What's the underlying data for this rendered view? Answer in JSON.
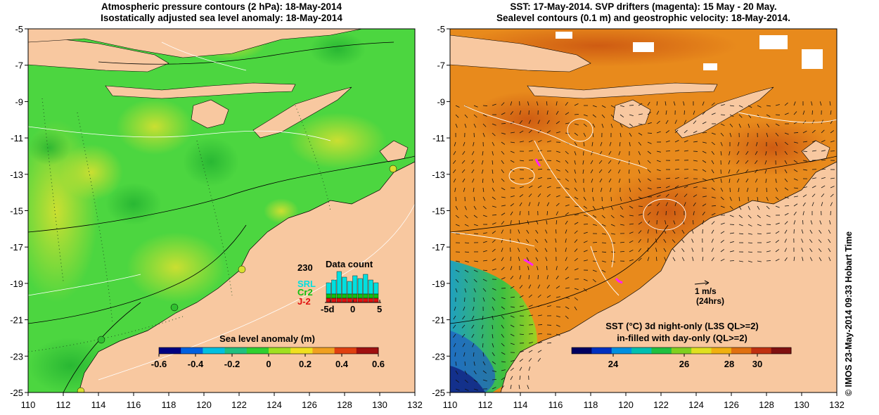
{
  "left_panel": {
    "title_line1": "Atmospheric pressure contours (2 hPa): 18-May-2014",
    "title_line2": "Isostatically adjusted sea level anomaly: 18-May-2014",
    "colorbar": {
      "label": "Sea level anomaly (m)",
      "ticks": [
        "-0.6",
        "-0.4",
        "-0.2",
        "0",
        "0.2",
        "0.4",
        "0.6"
      ],
      "colors": [
        "#000080",
        "#0060e0",
        "#00c0e0",
        "#20c080",
        "#30d030",
        "#a0e020",
        "#f0e020",
        "#f0a020",
        "#e04010",
        "#a01010"
      ]
    },
    "data_count": {
      "title": "Data count",
      "ymax_label": "230",
      "legend": [
        {
          "name": "SRL",
          "color": "#00e0e0"
        },
        {
          "name": "Cr2",
          "color": "#10c010"
        },
        {
          "name": "J-2",
          "color": "#e01010"
        }
      ],
      "x_ticks": [
        "-5d",
        "0",
        "5"
      ]
    }
  },
  "right_panel": {
    "title_line1": "SST: 17-May-2014. SVP drifters (magenta): 15 May - 20 May.",
    "title_line2": "Sealevel contours (0.1 m) and geostrophic velocity: 18-May-2014.",
    "scale_arrow_label1": "1 m/s",
    "scale_arrow_label2": "(24hrs)",
    "colorbar": {
      "label1": "SST (°C)  3d night-only (L3S QL>=2)",
      "label2": "in-filled with day-only (QL>=2)",
      "ticks": [
        "24",
        "26",
        "28",
        "30"
      ],
      "colors": [
        "#000060",
        "#0030c0",
        "#0090e0",
        "#00c0b0",
        "#20c040",
        "#80d020",
        "#e0e020",
        "#f0b010",
        "#e07010",
        "#c03010",
        "#801010"
      ]
    }
  },
  "axes": {
    "x_ticks": [
      "110",
      "112",
      "114",
      "116",
      "118",
      "120",
      "122",
      "124",
      "126",
      "128",
      "130",
      "132"
    ],
    "y_ticks": [
      "-5",
      "-7",
      "-9",
      "-11",
      "-13",
      "-15",
      "-17",
      "-19",
      "-21",
      "-23",
      "-25"
    ]
  },
  "colors": {
    "land": "#f8c8a0",
    "ocean_left": "#4cd640",
    "ocean_right": "#e88a1c"
  },
  "credit": "© IMOS 23-May-2014 09:33 Hobart Time"
}
